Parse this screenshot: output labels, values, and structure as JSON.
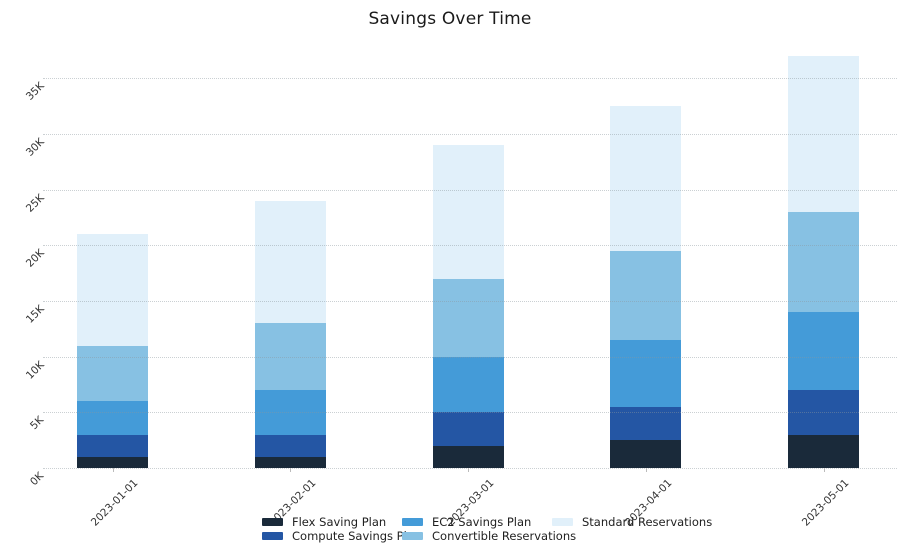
{
  "title": "Savings Over Time",
  "chart_data": {
    "type": "bar",
    "stacked": true,
    "title": "Savings Over Time",
    "xlabel": "",
    "ylabel": "",
    "categories": [
      "2023-01-01",
      "2023-02-01",
      "2023-03-01",
      "2023-04-01",
      "2023-05-01"
    ],
    "series": [
      {
        "name": "Flex Saving Plan",
        "color": "#1a2a3a",
        "values": [
          1000,
          1000,
          2000,
          2500,
          3000
        ]
      },
      {
        "name": "Compute Savings Plan",
        "color": "#2456a4",
        "values": [
          2000,
          2000,
          3000,
          3000,
          4000
        ]
      },
      {
        "name": "EC2 Savings Plan",
        "color": "#449bd8",
        "values": [
          3000,
          4000,
          5000,
          6000,
          7000
        ]
      },
      {
        "name": "Convertible Reservations",
        "color": "#87c1e3",
        "values": [
          5000,
          6000,
          7000,
          8000,
          9000
        ]
      },
      {
        "name": "Standard Reservations",
        "color": "#e1f0fa",
        "values": [
          10000,
          11000,
          12000,
          13000,
          14000
        ]
      }
    ],
    "stack_totals": [
      21000,
      24000,
      29000,
      32500,
      37000
    ],
    "y_ticks": [
      {
        "value": 0,
        "label": "0K"
      },
      {
        "value": 5000,
        "label": "5K"
      },
      {
        "value": 10000,
        "label": "10K"
      },
      {
        "value": 15000,
        "label": "15K"
      },
      {
        "value": 20000,
        "label": "20K"
      },
      {
        "value": 25000,
        "label": "25K"
      },
      {
        "value": 30000,
        "label": "30K"
      },
      {
        "value": 35000,
        "label": "35K"
      }
    ],
    "ylim": [
      0,
      37900
    ],
    "grid": "horizontal-dotted",
    "tick_label_rotation_deg": 45,
    "legend_position": "bottom"
  }
}
